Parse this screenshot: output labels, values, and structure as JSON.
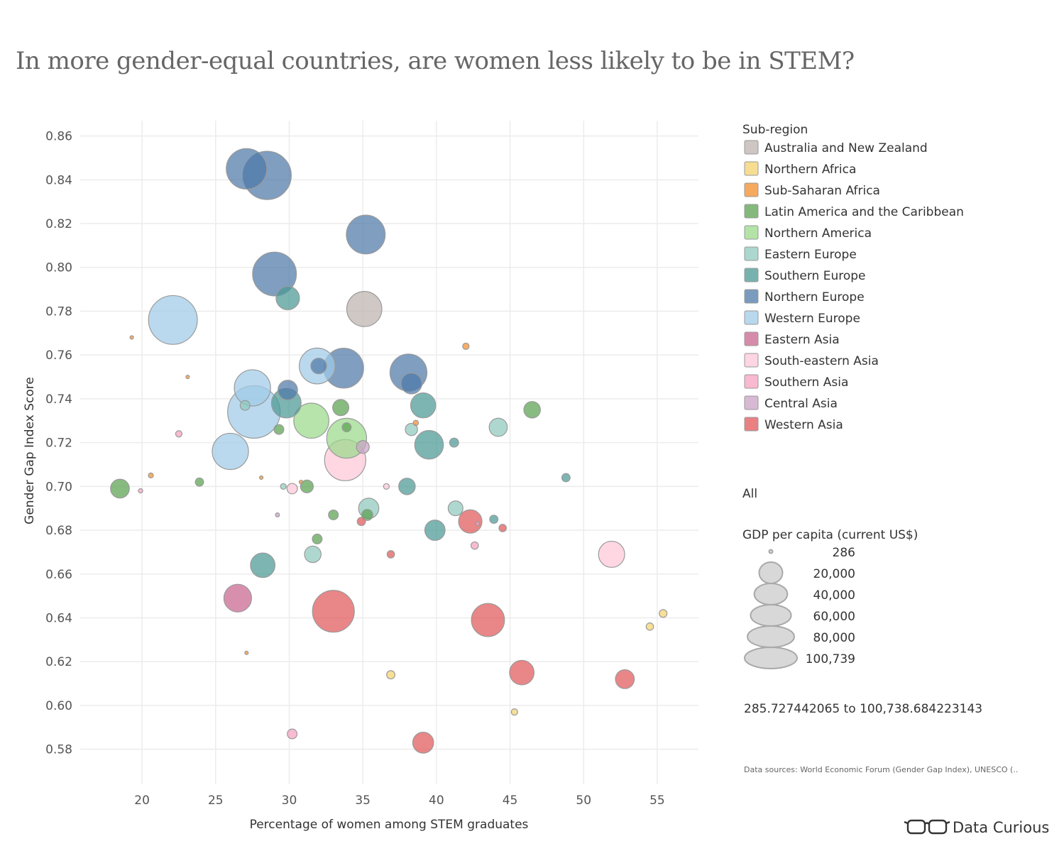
{
  "chart_data": {
    "type": "scatter",
    "title": "In more gender-equal countries, are women less likely to be in STEM?",
    "xlabel": "Percentage of women among STEM graduates",
    "ylabel": "Gender Gap Index Score",
    "xlim": [
      15.8,
      57.8
    ],
    "ylim": [
      0.564,
      0.867
    ],
    "x_ticks": [
      "20",
      "25",
      "30",
      "35",
      "40",
      "45",
      "50",
      "55"
    ],
    "y_ticks": [
      "0.86",
      "0.84",
      "0.82",
      "0.80",
      "0.78",
      "0.76",
      "0.74",
      "0.72",
      "0.70",
      "0.68",
      "0.66",
      "0.64",
      "0.62",
      "0.60",
      "0.58"
    ],
    "grid": true,
    "legend": {
      "title": "Sub-region",
      "placement": "right",
      "entries": [
        {
          "name": "Australia and New Zealand",
          "color": "#bcb3ae"
        },
        {
          "name": "Northern Africa",
          "color": "#f4d26e"
        },
        {
          "name": "Sub-Saharan Africa",
          "color": "#f28e2b"
        },
        {
          "name": "Latin America and the Caribbean",
          "color": "#59a14f"
        },
        {
          "name": "Northern America",
          "color": "#9ad98a"
        },
        {
          "name": "Eastern Europe",
          "color": "#8fc9bd"
        },
        {
          "name": "Southern Europe",
          "color": "#499894"
        },
        {
          "name": "Northern Europe",
          "color": "#4e79a7"
        },
        {
          "name": "Western Europe",
          "color": "#a0cbe8"
        },
        {
          "name": "Eastern Asia",
          "color": "#c9648e"
        },
        {
          "name": "South-eastern Asia",
          "color": "#fdc7d8"
        },
        {
          "name": "Southern Asia",
          "color": "#f7a1c0"
        },
        {
          "name": "Central Asia",
          "color": "#c9a2c6"
        },
        {
          "name": "Western Asia",
          "color": "#e15759"
        }
      ]
    },
    "filter_label": "All",
    "size_legend": {
      "title": "GDP per capita (current US$)",
      "labels": [
        "286",
        "20,000",
        "40,000",
        "60,000",
        "80,000",
        "100,739"
      ],
      "values": [
        286,
        20000,
        40000,
        60000,
        80000,
        100739
      ]
    },
    "range_text": "285.727442065 to 100,738.684223143",
    "source_note": "Data sources: World Economic Forum (Gender Gap Index), UNESCO (..",
    "brand": "Data Curious",
    "points": [
      {
        "x": 27.1,
        "y": 0.845,
        "gdp": 60000,
        "region": 7
      },
      {
        "x": 28.5,
        "y": 0.842,
        "gdp": 85000,
        "region": 7
      },
      {
        "x": 35.2,
        "y": 0.815,
        "gdp": 55000,
        "region": 7
      },
      {
        "x": 29.0,
        "y": 0.797,
        "gdp": 70000,
        "region": 7
      },
      {
        "x": 29.9,
        "y": 0.786,
        "gdp": 20000,
        "region": 6
      },
      {
        "x": 22.1,
        "y": 0.776,
        "gdp": 87000,
        "region": 8
      },
      {
        "x": 35.1,
        "y": 0.781,
        "gdp": 45000,
        "region": 0
      },
      {
        "x": 42.0,
        "y": 0.764,
        "gdp": 1500,
        "region": 2
      },
      {
        "x": 19.3,
        "y": 0.768,
        "gdp": 300,
        "region": 2
      },
      {
        "x": 23.1,
        "y": 0.75,
        "gdp": 300,
        "region": 2
      },
      {
        "x": 31.9,
        "y": 0.755,
        "gdp": 47000,
        "region": 8
      },
      {
        "x": 32.0,
        "y": 0.755,
        "gdp": 9000,
        "region": 7
      },
      {
        "x": 33.7,
        "y": 0.754,
        "gdp": 58000,
        "region": 7
      },
      {
        "x": 38.1,
        "y": 0.752,
        "gdp": 50000,
        "region": 7
      },
      {
        "x": 38.3,
        "y": 0.747,
        "gdp": 16000,
        "region": 7
      },
      {
        "x": 27.5,
        "y": 0.745,
        "gdp": 48000,
        "region": 8
      },
      {
        "x": 29.9,
        "y": 0.744,
        "gdp": 14000,
        "region": 7
      },
      {
        "x": 27.6,
        "y": 0.734,
        "gdp": 100739,
        "region": 8
      },
      {
        "x": 29.8,
        "y": 0.738,
        "gdp": 32000,
        "region": 6
      },
      {
        "x": 27.0,
        "y": 0.737,
        "gdp": 3500,
        "region": 5
      },
      {
        "x": 31.5,
        "y": 0.73,
        "gdp": 45000,
        "region": 4
      },
      {
        "x": 33.5,
        "y": 0.736,
        "gdp": 9500,
        "region": 3
      },
      {
        "x": 39.1,
        "y": 0.737,
        "gdp": 23000,
        "region": 6
      },
      {
        "x": 46.5,
        "y": 0.735,
        "gdp": 10000,
        "region": 3
      },
      {
        "x": 29.3,
        "y": 0.726,
        "gdp": 3500,
        "region": 3
      },
      {
        "x": 33.9,
        "y": 0.727,
        "gdp": 3000,
        "region": 3
      },
      {
        "x": 33.9,
        "y": 0.722,
        "gdp": 58000,
        "region": 4
      },
      {
        "x": 33.8,
        "y": 0.712,
        "gdp": 62000,
        "region": 10
      },
      {
        "x": 35.0,
        "y": 0.718,
        "gdp": 6000,
        "region": 12
      },
      {
        "x": 38.3,
        "y": 0.726,
        "gdp": 5500,
        "region": 5
      },
      {
        "x": 38.6,
        "y": 0.729,
        "gdp": 1000,
        "region": 2
      },
      {
        "x": 39.5,
        "y": 0.719,
        "gdp": 30000,
        "region": 6
      },
      {
        "x": 41.2,
        "y": 0.72,
        "gdp": 3000,
        "region": 6
      },
      {
        "x": 44.2,
        "y": 0.727,
        "gdp": 12000,
        "region": 5
      },
      {
        "x": 22.5,
        "y": 0.724,
        "gdp": 1500,
        "region": 11
      },
      {
        "x": 26.0,
        "y": 0.716,
        "gdp": 48000,
        "region": 8
      },
      {
        "x": 18.5,
        "y": 0.699,
        "gdp": 13000,
        "region": 3
      },
      {
        "x": 19.9,
        "y": 0.698,
        "gdp": 700,
        "region": 11
      },
      {
        "x": 20.6,
        "y": 0.705,
        "gdp": 900,
        "region": 2
      },
      {
        "x": 23.9,
        "y": 0.702,
        "gdp": 2500,
        "region": 3
      },
      {
        "x": 28.1,
        "y": 0.704,
        "gdp": 300,
        "region": 2
      },
      {
        "x": 29.6,
        "y": 0.7,
        "gdp": 1200,
        "region": 5
      },
      {
        "x": 30.2,
        "y": 0.699,
        "gdp": 4000,
        "region": 10
      },
      {
        "x": 30.8,
        "y": 0.702,
        "gdp": 500,
        "region": 2
      },
      {
        "x": 31.2,
        "y": 0.7,
        "gdp": 6000,
        "region": 3
      },
      {
        "x": 36.6,
        "y": 0.7,
        "gdp": 1200,
        "region": 10
      },
      {
        "x": 38.0,
        "y": 0.7,
        "gdp": 10000,
        "region": 6
      },
      {
        "x": 48.8,
        "y": 0.704,
        "gdp": 2500,
        "region": 6
      },
      {
        "x": 35.4,
        "y": 0.69,
        "gdp": 15000,
        "region": 5
      },
      {
        "x": 41.3,
        "y": 0.69,
        "gdp": 8000,
        "region": 5
      },
      {
        "x": 29.2,
        "y": 0.687,
        "gdp": 600,
        "region": 12
      },
      {
        "x": 33.0,
        "y": 0.687,
        "gdp": 3500,
        "region": 3
      },
      {
        "x": 35.3,
        "y": 0.687,
        "gdp": 4500,
        "region": 3
      },
      {
        "x": 34.9,
        "y": 0.684,
        "gdp": 2500,
        "region": 13
      },
      {
        "x": 42.3,
        "y": 0.684,
        "gdp": 20000,
        "region": 13
      },
      {
        "x": 42.8,
        "y": 0.683,
        "gdp": 600,
        "region": 11
      },
      {
        "x": 43.9,
        "y": 0.685,
        "gdp": 2500,
        "region": 6
      },
      {
        "x": 44.5,
        "y": 0.681,
        "gdp": 2000,
        "region": 13
      },
      {
        "x": 39.9,
        "y": 0.68,
        "gdp": 15000,
        "region": 6
      },
      {
        "x": 31.9,
        "y": 0.676,
        "gdp": 3500,
        "region": 3
      },
      {
        "x": 42.6,
        "y": 0.673,
        "gdp": 2000,
        "region": 11
      },
      {
        "x": 31.6,
        "y": 0.669,
        "gdp": 10000,
        "region": 5
      },
      {
        "x": 36.9,
        "y": 0.669,
        "gdp": 2000,
        "region": 13
      },
      {
        "x": 51.9,
        "y": 0.669,
        "gdp": 25000,
        "region": 10
      },
      {
        "x": 28.2,
        "y": 0.664,
        "gdp": 22000,
        "region": 6
      },
      {
        "x": 26.5,
        "y": 0.649,
        "gdp": 28000,
        "region": 9
      },
      {
        "x": 33.0,
        "y": 0.643,
        "gdp": 64000,
        "region": 13
      },
      {
        "x": 43.5,
        "y": 0.639,
        "gdp": 40000,
        "region": 13
      },
      {
        "x": 54.5,
        "y": 0.636,
        "gdp": 2000,
        "region": 1
      },
      {
        "x": 55.4,
        "y": 0.642,
        "gdp": 2200,
        "region": 1
      },
      {
        "x": 27.1,
        "y": 0.624,
        "gdp": 400,
        "region": 2
      },
      {
        "x": 36.9,
        "y": 0.614,
        "gdp": 2500,
        "region": 1
      },
      {
        "x": 45.8,
        "y": 0.615,
        "gdp": 22000,
        "region": 13
      },
      {
        "x": 52.8,
        "y": 0.612,
        "gdp": 13000,
        "region": 13
      },
      {
        "x": 45.3,
        "y": 0.597,
        "gdp": 1500,
        "region": 1
      },
      {
        "x": 30.2,
        "y": 0.587,
        "gdp": 3500,
        "region": 11
      },
      {
        "x": 39.1,
        "y": 0.583,
        "gdp": 16000,
        "region": 13
      }
    ]
  }
}
